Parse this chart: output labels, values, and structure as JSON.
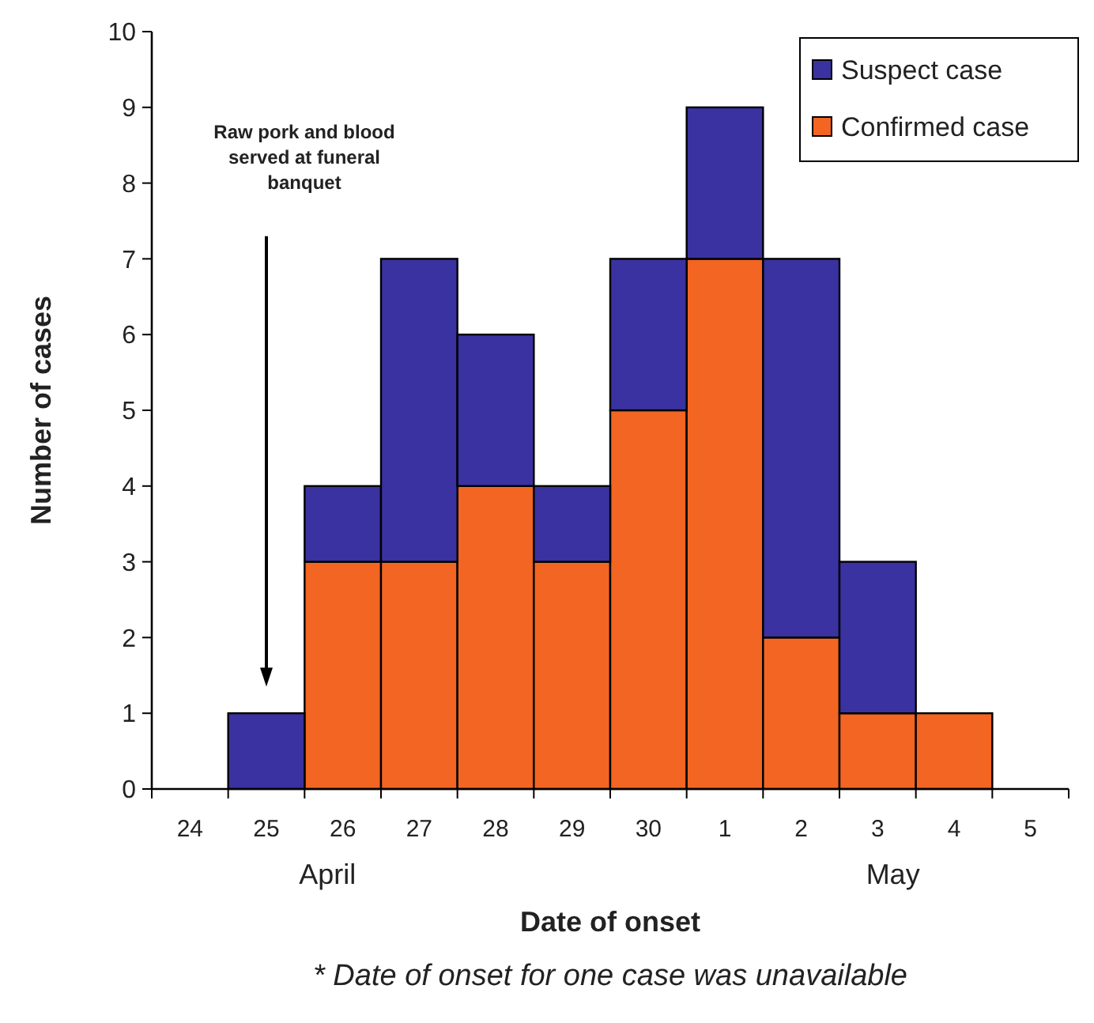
{
  "chart_data": {
    "type": "bar",
    "stacked": true,
    "xlabel": "Date of onset",
    "ylabel": "Number of cases",
    "categories": [
      "24",
      "25",
      "26",
      "27",
      "28",
      "29",
      "30",
      "1",
      "2",
      "3",
      "4",
      "5"
    ],
    "series": [
      {
        "name": "Confirmed case",
        "color": "#f26522",
        "values": [
          0,
          0,
          3,
          3,
          4,
          3,
          5,
          7,
          2,
          1,
          1,
          0
        ]
      },
      {
        "name": "Suspect case",
        "color": "#3a32a0",
        "values": [
          0,
          1,
          1,
          4,
          2,
          1,
          2,
          2,
          5,
          2,
          0,
          0
        ]
      }
    ],
    "ylim": [
      0,
      10
    ],
    "yticks": [
      0,
      1,
      2,
      3,
      4,
      5,
      6,
      7,
      8,
      9,
      10
    ],
    "grid": false,
    "legend": "top right",
    "annotations": [
      "Raw pork and blood served at funeral banquet",
      "April",
      "May",
      "* Date of onset for one case was unavailable"
    ]
  }
}
